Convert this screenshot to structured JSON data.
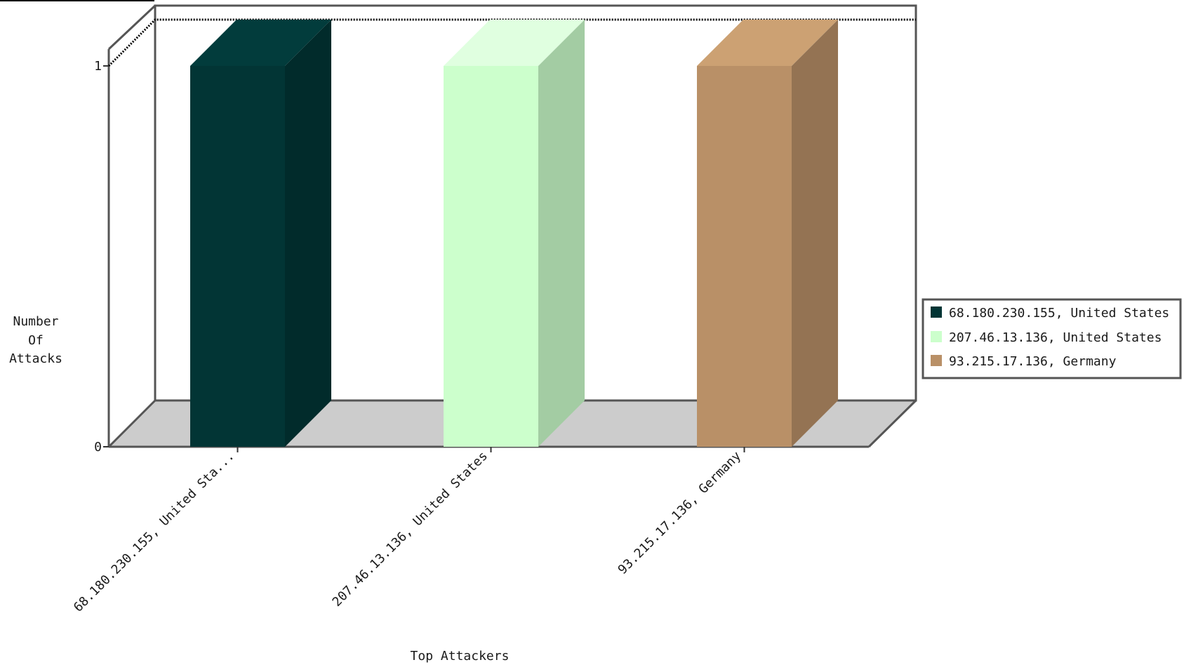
{
  "chart_data": {
    "type": "bar",
    "title": "",
    "xlabel": "Top Attackers",
    "ylabel": [
      "Number",
      "Of",
      "Attacks"
    ],
    "categories": [
      "68.180.230.155, United Sta...",
      "207.46.13.136, United States",
      "93.215.17.136, Germany"
    ],
    "values": [
      1,
      1,
      1
    ],
    "ylim": [
      0,
      1
    ],
    "yticks": [
      "0",
      "1"
    ],
    "legend": {
      "placement": "right",
      "entries": [
        "68.180.230.155, United States",
        "207.46.13.136, United States",
        "93.215.17.136, Germany"
      ]
    },
    "colors": {
      "front": [
        "#023535",
        "#ccffcc",
        "#b99067"
      ],
      "side": [
        "#012b2b",
        "#a3cca3",
        "#947353"
      ],
      "top": [
        "#023c3c",
        "#e0ffe0",
        "#cca173"
      ],
      "floor": "#cccccc",
      "frame": "#555555"
    }
  }
}
